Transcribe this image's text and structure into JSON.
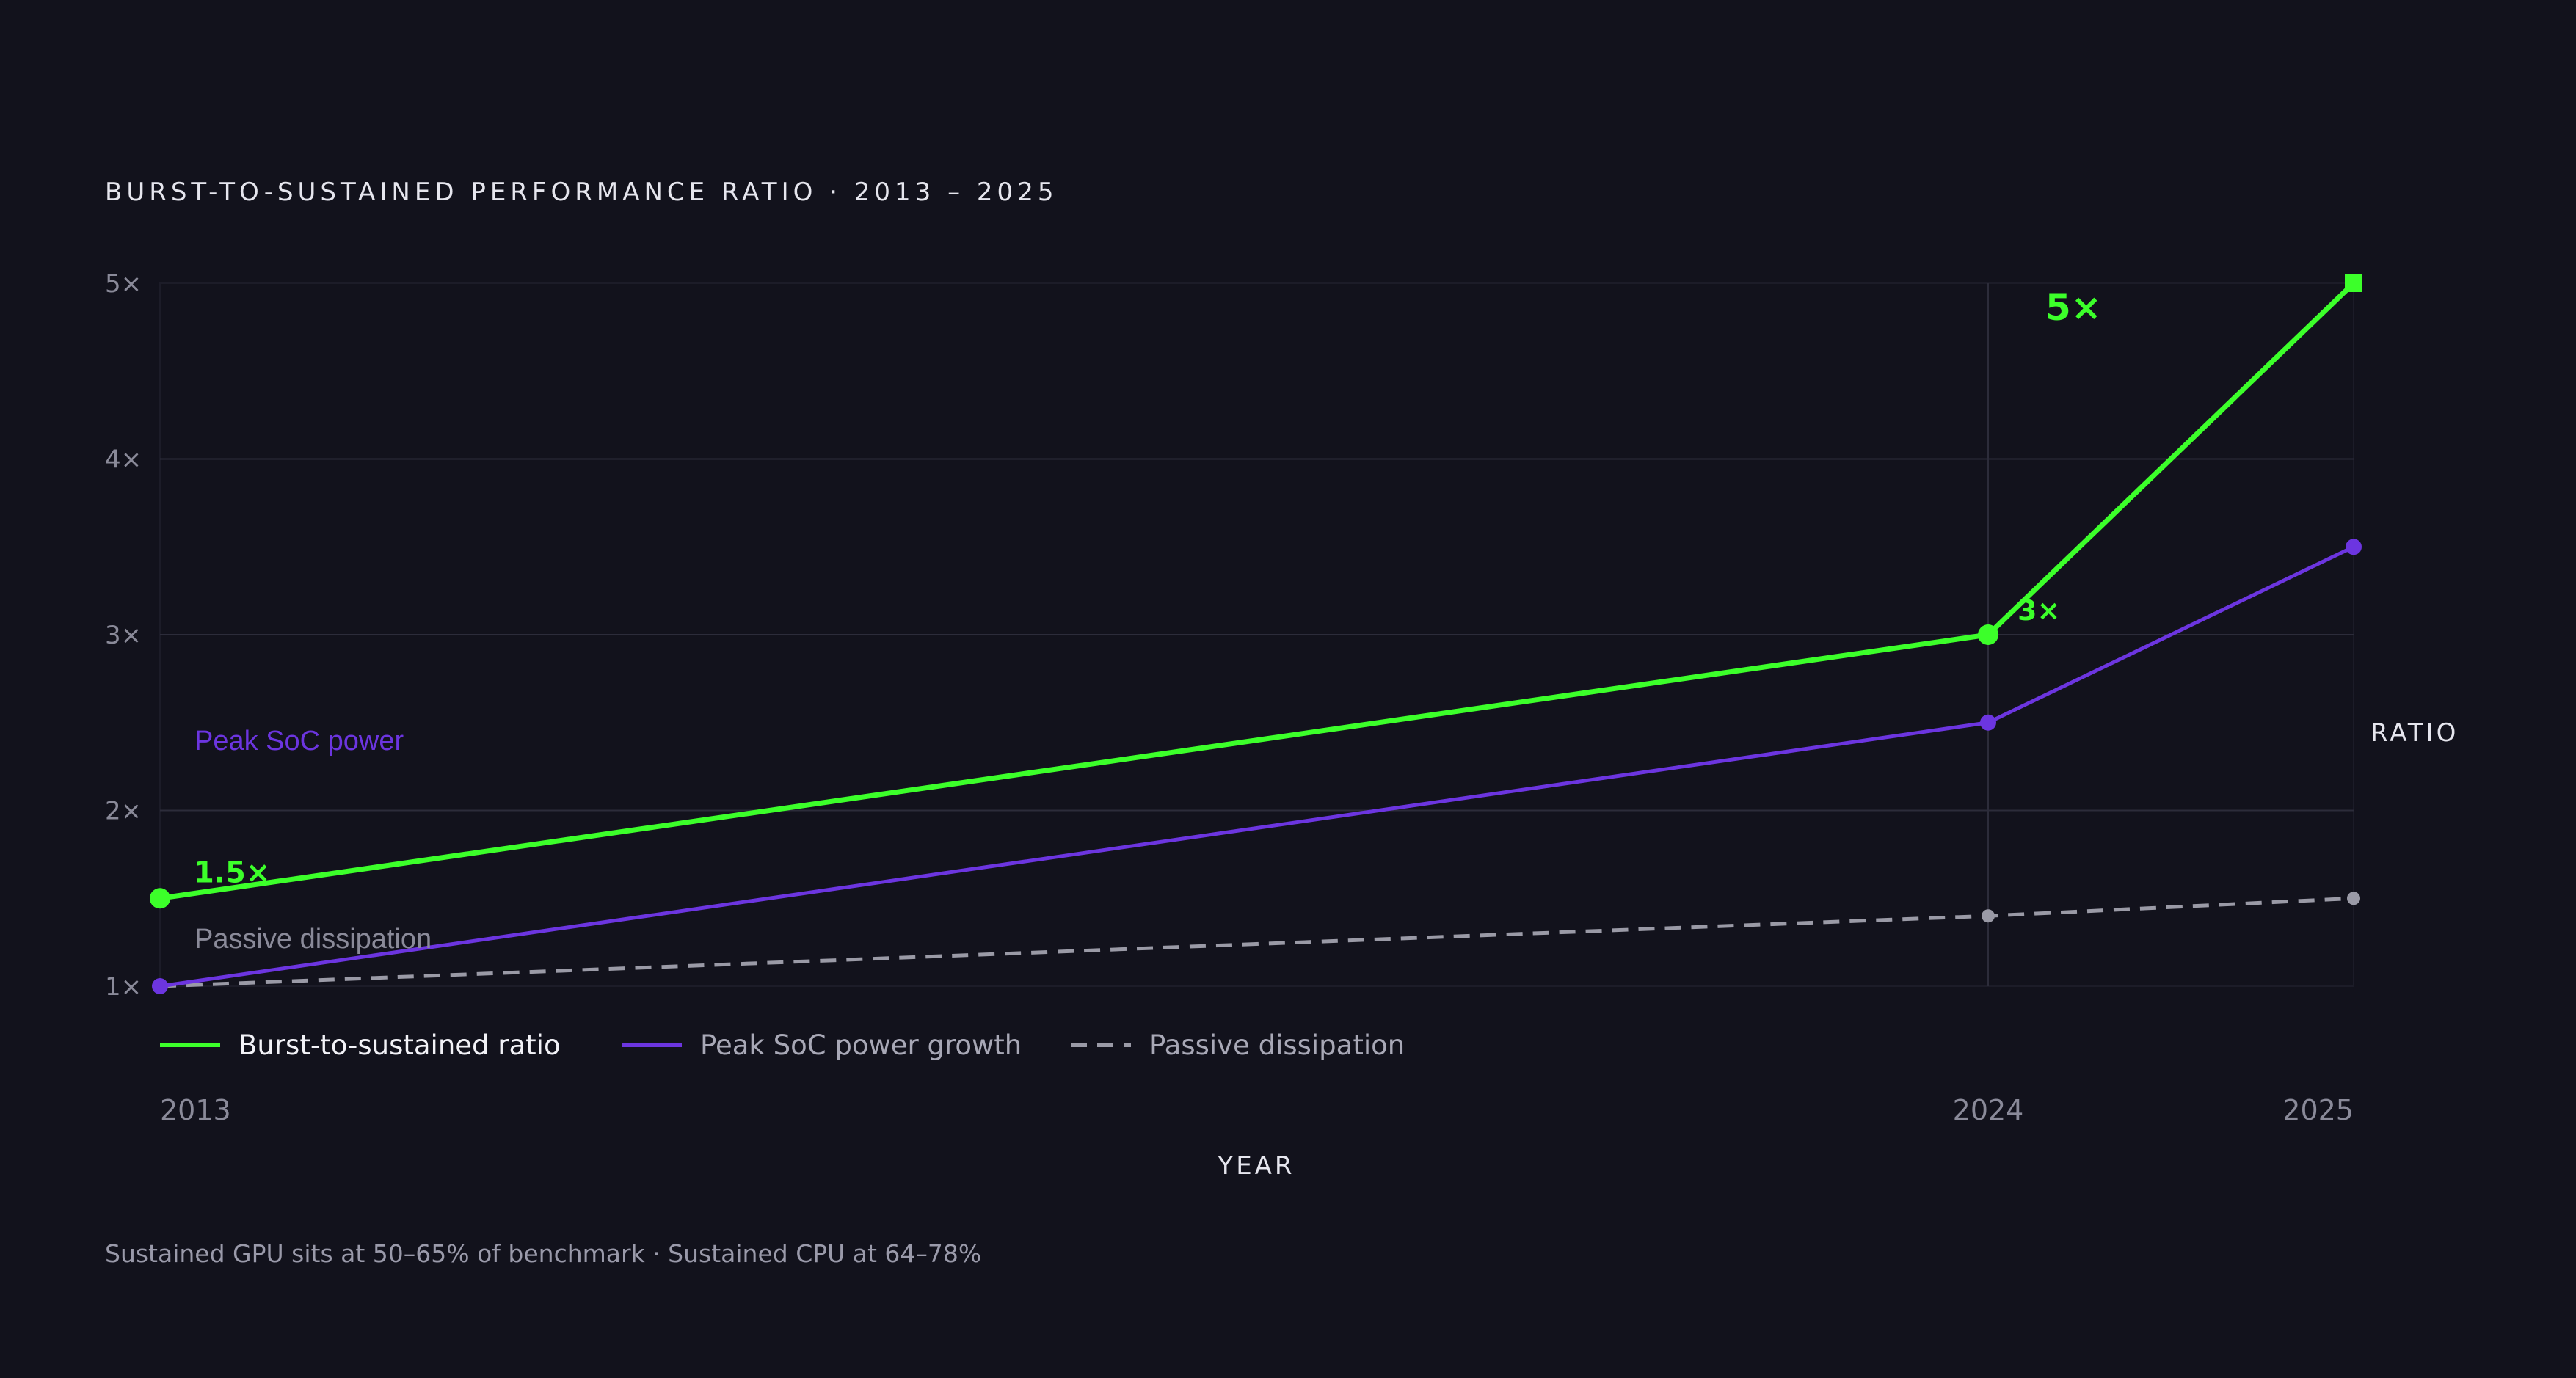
{
  "title": "BURST-TO-SUSTAINED PERFORMANCE RATIO · 2013 – 2025",
  "caption": "Sustained GPU sits at 50–65% of benchmark · Sustained CPU at 64–78%",
  "chart_data": {
    "type": "line",
    "x": [
      "2013",
      "2024",
      "2025"
    ],
    "xlabel": "YEAR",
    "ylabel": "RATIO",
    "ylim": [
      1,
      5
    ],
    "y_ticks": [
      "1×",
      "2×",
      "3×",
      "4×",
      "5×"
    ],
    "grid": true,
    "legend_position": "bottom-left",
    "series": [
      {
        "name": "Burst-to-sustained ratio",
        "values": [
          1.5,
          3,
          5
        ],
        "color": "#3cff2a",
        "style": "solid"
      },
      {
        "name": "Peak SoC power growth",
        "values": [
          1.0,
          2.5,
          3.5
        ],
        "color": "#6c35e0",
        "style": "solid"
      },
      {
        "name": "Passive dissipation",
        "values": [
          1.0,
          1.4,
          1.5
        ],
        "color": "#9a9aa6",
        "style": "dashed"
      }
    ],
    "annotations": [
      {
        "text": "1.5×",
        "series": 0,
        "point": 0
      },
      {
        "text": "3×",
        "series": 0,
        "point": 1
      },
      {
        "text": "5×",
        "series": 0,
        "point": 2
      }
    ],
    "inline_labels": [
      {
        "text": "Peak SoC power",
        "series": 1
      },
      {
        "text": "Passive dissipation",
        "series": 2
      }
    ]
  }
}
